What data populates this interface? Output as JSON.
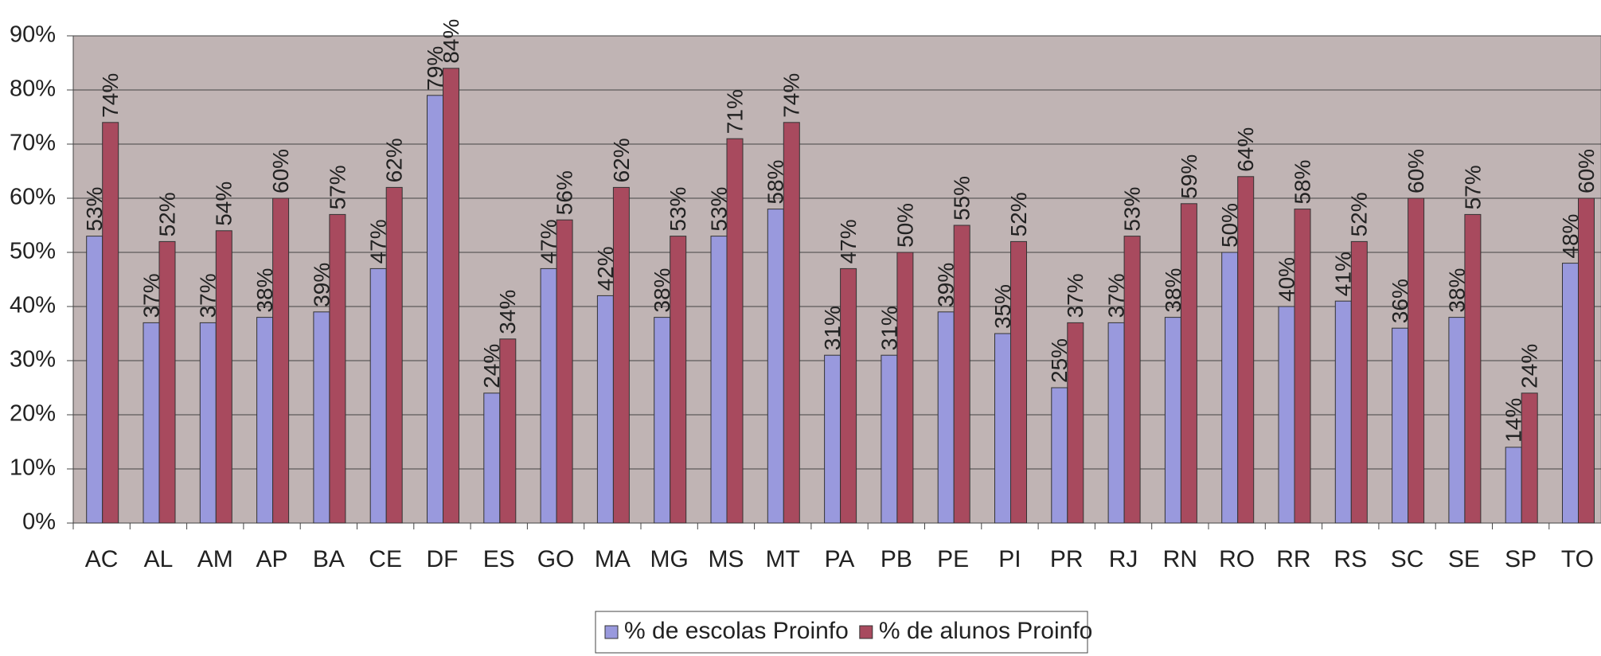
{
  "chart_data": {
    "type": "bar",
    "categories": [
      "AC",
      "AL",
      "AM",
      "AP",
      "BA",
      "CE",
      "DF",
      "ES",
      "GO",
      "MA",
      "MG",
      "MS",
      "MT",
      "PA",
      "PB",
      "PE",
      "PI",
      "PR",
      "RJ",
      "RN",
      "RO",
      "RR",
      "RS",
      "SC",
      "SE",
      "SP",
      "TO"
    ],
    "series": [
      {
        "name": "% de escolas Proinfo",
        "color": "#9999dd",
        "values": [
          53,
          37,
          37,
          38,
          39,
          47,
          79,
          24,
          47,
          42,
          38,
          53,
          58,
          31,
          31,
          39,
          35,
          25,
          37,
          38,
          50,
          40,
          41,
          36,
          38,
          14,
          48
        ],
        "value_labels": [
          "53%",
          "37%",
          "37%",
          "38%",
          "39%",
          "47%",
          "79%",
          "24%",
          "47%",
          "42%",
          "38%",
          "53%",
          "58%",
          "31%",
          "31%",
          "39%",
          "35%",
          "25%",
          "37%",
          "38%",
          "50%",
          "40%",
          "41%",
          "36%",
          "38%",
          "14%",
          "48%"
        ]
      },
      {
        "name": "% de alunos Proinfo",
        "color": "#a84a5e",
        "values": [
          74,
          52,
          54,
          60,
          57,
          62,
          84,
          34,
          56,
          62,
          53,
          71,
          74,
          47,
          50,
          55,
          52,
          37,
          53,
          59,
          64,
          58,
          52,
          60,
          57,
          24,
          60
        ],
        "value_labels": [
          "74%",
          "52%",
          "54%",
          "60%",
          "57%",
          "62%",
          "84%",
          "34%",
          "56%",
          "62%",
          "53%",
          "71%",
          "74%",
          "47%",
          "50%",
          "55%",
          "52%",
          "37%",
          "53%",
          "59%",
          "64%",
          "58%",
          "52%",
          "60%",
          "57%",
          "24%",
          "60%"
        ]
      }
    ],
    "ylim": [
      0,
      90
    ],
    "yticks": [
      {
        "value": 0,
        "label": "0%"
      },
      {
        "value": 10,
        "label": "10%"
      },
      {
        "value": 20,
        "label": "20%"
      },
      {
        "value": 30,
        "label": "30%"
      },
      {
        "value": 40,
        "label": "40%"
      },
      {
        "value": 50,
        "label": "50%"
      },
      {
        "value": 60,
        "label": "60%"
      },
      {
        "value": 70,
        "label": "70%"
      },
      {
        "value": 80,
        "label": "80%"
      },
      {
        "value": 90,
        "label": "90%"
      }
    ],
    "grid": true,
    "legend": "bottom"
  }
}
